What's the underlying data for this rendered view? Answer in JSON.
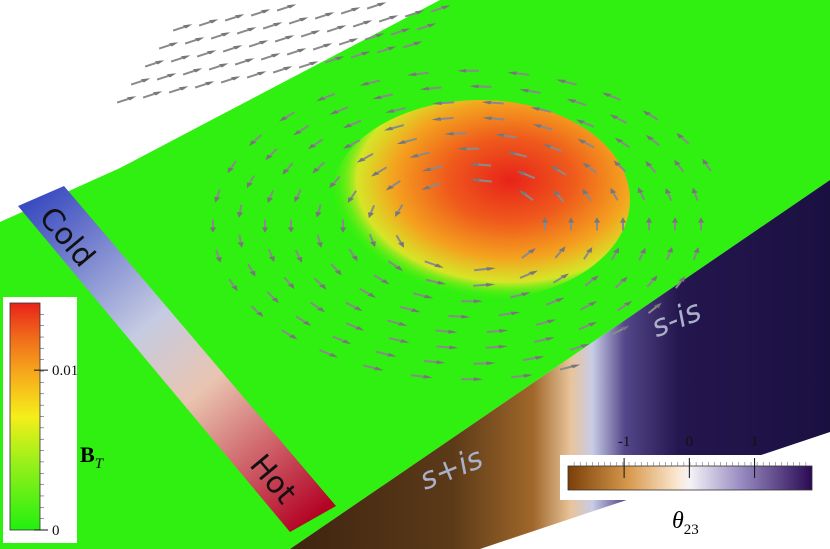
{
  "temperature_bar": {
    "top": "Cold",
    "bottom": "Hot"
  },
  "side_labels": {
    "left": "s+is",
    "right": "s-is"
  },
  "bt_colorbar": {
    "label": "B",
    "label_sub": "T",
    "range": [
      0,
      0.0142
    ],
    "ticks": [
      0.01,
      0
    ]
  },
  "theta_colorbar": {
    "label": "θ",
    "label_sub": "23",
    "range": [
      -1.86,
      1.88
    ],
    "ticks": [
      -1,
      0,
      1
    ]
  }
}
